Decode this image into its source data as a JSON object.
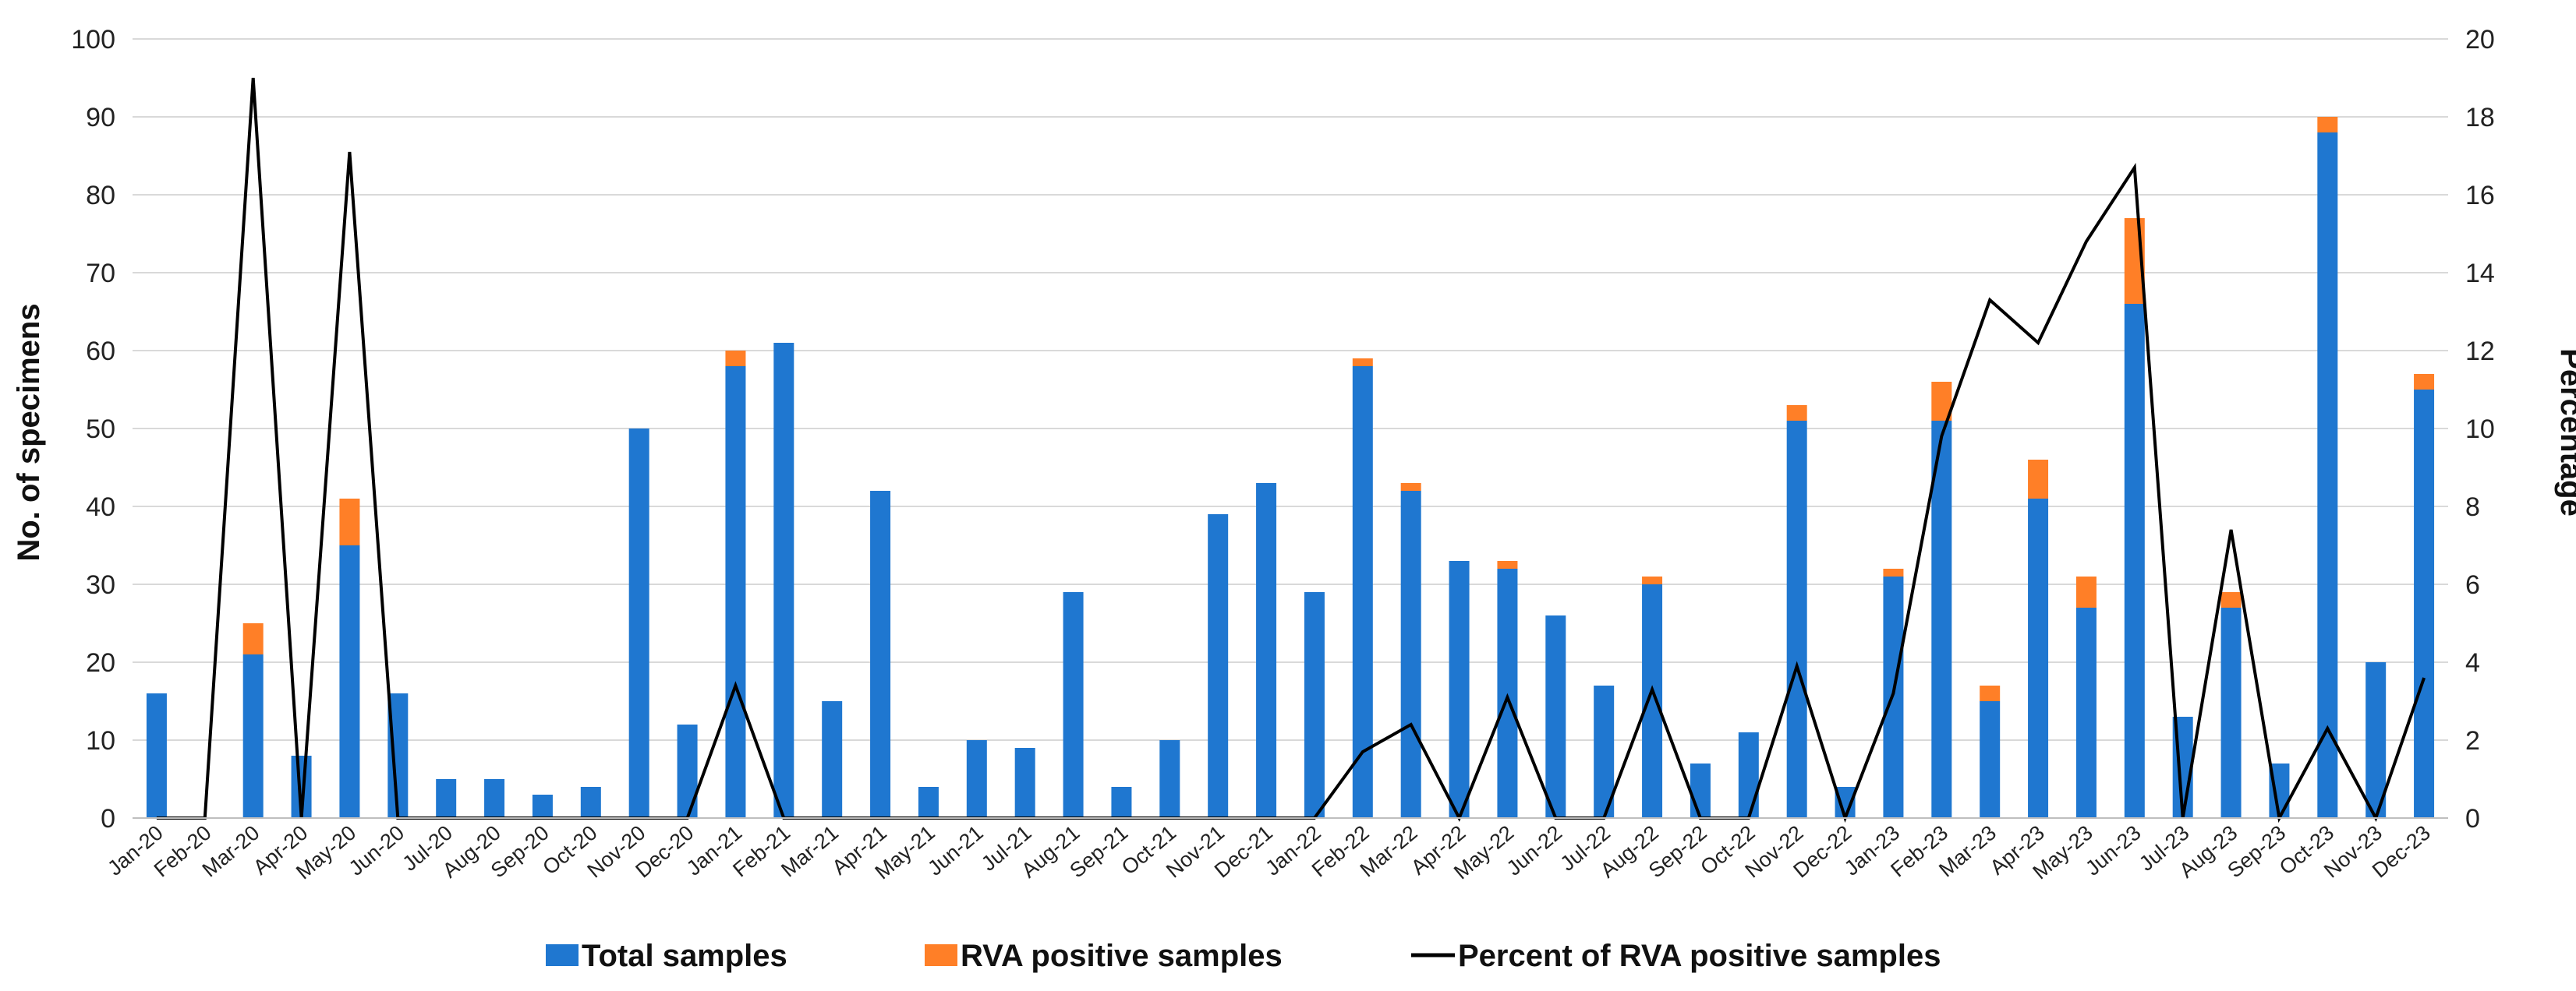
{
  "chart_data": {
    "type": "bar",
    "title": "",
    "categories": [
      "Jan-20",
      "Feb-20",
      "Mar-20",
      "Apr-20",
      "May-20",
      "Jun-20",
      "Jul-20",
      "Aug-20",
      "Sep-20",
      "Oct-20",
      "Nov-20",
      "Dec-20",
      "Jan-21",
      "Feb-21",
      "Mar-21",
      "Apr-21",
      "May-21",
      "Jun-21",
      "Jul-21",
      "Aug-21",
      "Sep-21",
      "Oct-21",
      "Nov-21",
      "Dec-21",
      "Jan-22",
      "Feb-22",
      "Mar-22",
      "Apr-22",
      "May-22",
      "Jun-22",
      "Jul-22",
      "Aug-22",
      "Sep-22",
      "Oct-22",
      "Nov-22",
      "Dec-22",
      "Jan-23",
      "Feb-23",
      "Mar-23",
      "Apr-23",
      "May-23",
      "Jun-23",
      "Jul-23",
      "Aug-23",
      "Sep-23",
      "Oct-23",
      "Nov-23",
      "Dec-23"
    ],
    "series": [
      {
        "name": "Total samples",
        "type": "bar",
        "axis": "left",
        "color": "#1f77d0",
        "values": [
          16,
          0,
          21,
          8,
          35,
          16,
          5,
          5,
          3,
          4,
          50,
          12,
          58,
          61,
          15,
          42,
          4,
          10,
          9,
          29,
          4,
          10,
          39,
          43,
          29,
          58,
          42,
          33,
          32,
          26,
          17,
          30,
          7,
          11,
          51,
          4,
          31,
          51,
          15,
          41,
          27,
          66,
          13,
          27,
          7,
          88,
          20,
          55
        ]
      },
      {
        "name": "RVA positive samples",
        "type": "bar",
        "axis": "left",
        "stacked": true,
        "color": "#ff7f27",
        "values": [
          0,
          0,
          4,
          0,
          6,
          0,
          0,
          0,
          0,
          0,
          0,
          0,
          2,
          0,
          0,
          0,
          0,
          0,
          0,
          0,
          0,
          0,
          0,
          0,
          0,
          1,
          1,
          0,
          1,
          0,
          0,
          1,
          0,
          0,
          2,
          0,
          1,
          5,
          2,
          5,
          4,
          11,
          0,
          2,
          0,
          2,
          0,
          2
        ]
      },
      {
        "name": "Percent of RVA positive samples",
        "type": "line",
        "axis": "right",
        "color": "#000000",
        "values": [
          0,
          0,
          19,
          0,
          17.1,
          0,
          0,
          0,
          0,
          0,
          0,
          0,
          3.4,
          0,
          0,
          0,
          0,
          0,
          0,
          0,
          0,
          0,
          0,
          0,
          0,
          1.7,
          2.4,
          0,
          3.1,
          0,
          0,
          3.3,
          0,
          0,
          3.9,
          0,
          3.2,
          9.8,
          13.3,
          12.2,
          14.8,
          16.7,
          0,
          7.4,
          0,
          2.3,
          0,
          3.6
        ]
      }
    ],
    "ylabel": "No. of specimens",
    "y2label": "Percentage",
    "ylim": [
      0,
      100
    ],
    "y2lim": [
      0,
      20
    ],
    "yticks": [
      "0",
      "10",
      "20",
      "30",
      "40",
      "50",
      "60",
      "70",
      "80",
      "90",
      "100"
    ],
    "y2ticks": [
      "0",
      "2",
      "4",
      "6",
      "8",
      "10",
      "12",
      "14",
      "16",
      "18",
      "20"
    ],
    "grid": true,
    "legend_position": "bottom"
  }
}
